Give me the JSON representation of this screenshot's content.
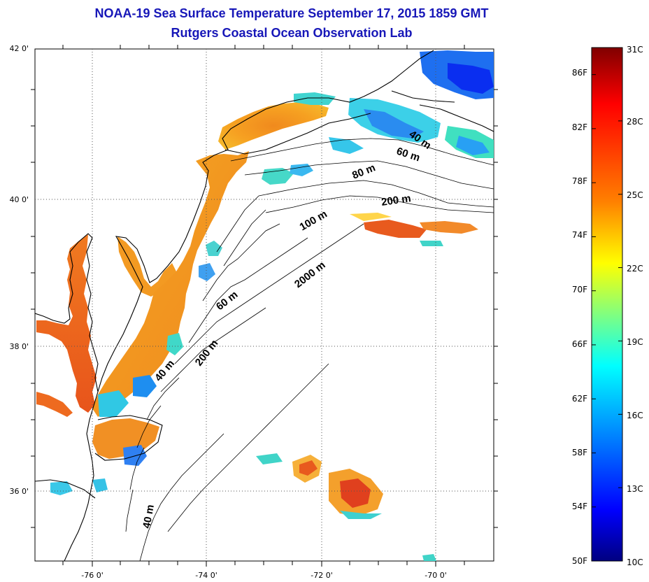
{
  "header": {
    "title_line1": "NOAA-19 Sea Surface Temperature September 17, 2015 1859 GMT",
    "title_line2": "Rutgers Coastal Ocean Observation Lab"
  },
  "map": {
    "lat_ticks": [
      {
        "value": 42,
        "label": "42 0'"
      },
      {
        "value": 40,
        "label": "40 0'"
      },
      {
        "value": 38,
        "label": "38 0'"
      },
      {
        "value": 36,
        "label": "36 0'"
      }
    ],
    "lon_ticks": [
      {
        "value": -76,
        "label": "-76 0'"
      },
      {
        "value": -74,
        "label": "-74 0'"
      },
      {
        "value": -72,
        "label": "-72 0'"
      },
      {
        "value": -70,
        "label": "-70 0'"
      }
    ],
    "depth_labels": [
      {
        "text": "40 m"
      },
      {
        "text": "60 m"
      },
      {
        "text": "80 m"
      },
      {
        "text": "200 m"
      },
      {
        "text": "100 m"
      },
      {
        "text": "2000 m"
      },
      {
        "text": "60 m"
      },
      {
        "text": "40 m"
      },
      {
        "text": "200 m"
      },
      {
        "text": "40 m"
      }
    ]
  },
  "colorbar": {
    "range_c": [
      10,
      31
    ],
    "range_f": [
      50,
      88
    ],
    "celsius_labels": [
      "31C",
      "28C",
      "25C",
      "22C",
      "19C",
      "16C",
      "13C",
      "10C"
    ],
    "fahrenheit_labels": [
      "86F",
      "82F",
      "78F",
      "74F",
      "70F",
      "66F",
      "62F",
      "58F",
      "54F",
      "50F"
    ],
    "colors": [
      "#800000",
      "#ff0000",
      "#ff8000",
      "#ffff00",
      "#80ff80",
      "#00ffff",
      "#0080ff",
      "#0000ff",
      "#000080"
    ]
  }
}
